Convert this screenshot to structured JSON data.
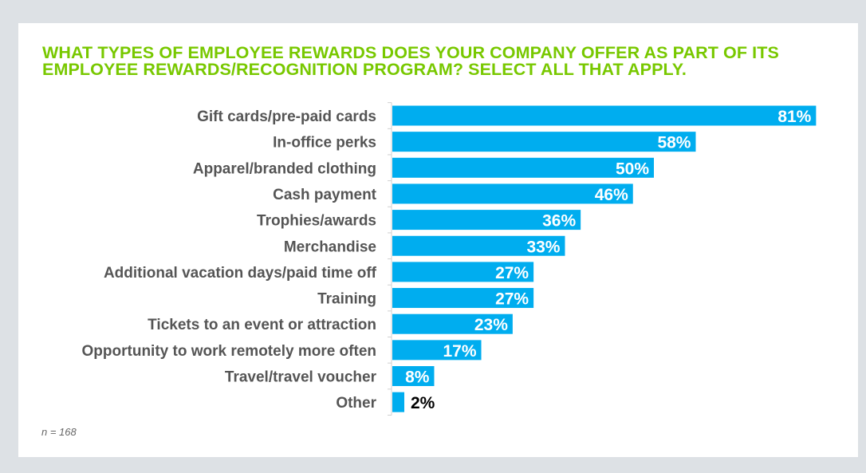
{
  "chart_data": {
    "type": "bar",
    "orientation": "horizontal",
    "title": "WHAT TYPES OF EMPLOYEE REWARDS DOES YOUR COMPANY OFFER AS PART OF ITS EMPLOYEE REWARDS/RECOGNITION PROGRAM? SELECT ALL THAT APPLY.",
    "categories": [
      "Gift cards/pre-paid cards",
      "In-office perks",
      "Apparel/branded clothing",
      "Cash payment",
      "Trophies/awards",
      "Merchandise",
      "Additional vacation days/paid time off",
      "Training",
      "Tickets to an event or attraction",
      "Opportunity to work remotely more often",
      "Travel/travel voucher",
      "Other"
    ],
    "values": [
      81,
      58,
      50,
      46,
      36,
      33,
      27,
      27,
      23,
      17,
      8,
      2
    ],
    "data_labels": [
      "81%",
      "58%",
      "50%",
      "46%",
      "36%",
      "33%",
      "27%",
      "27%",
      "23%",
      "17%",
      "8%",
      "2%"
    ],
    "unit": "%",
    "grid": false,
    "legend": "none",
    "colors": {
      "bar": "#00adef",
      "title": "#78c800",
      "label": "#555555"
    },
    "note": "n = 168"
  }
}
